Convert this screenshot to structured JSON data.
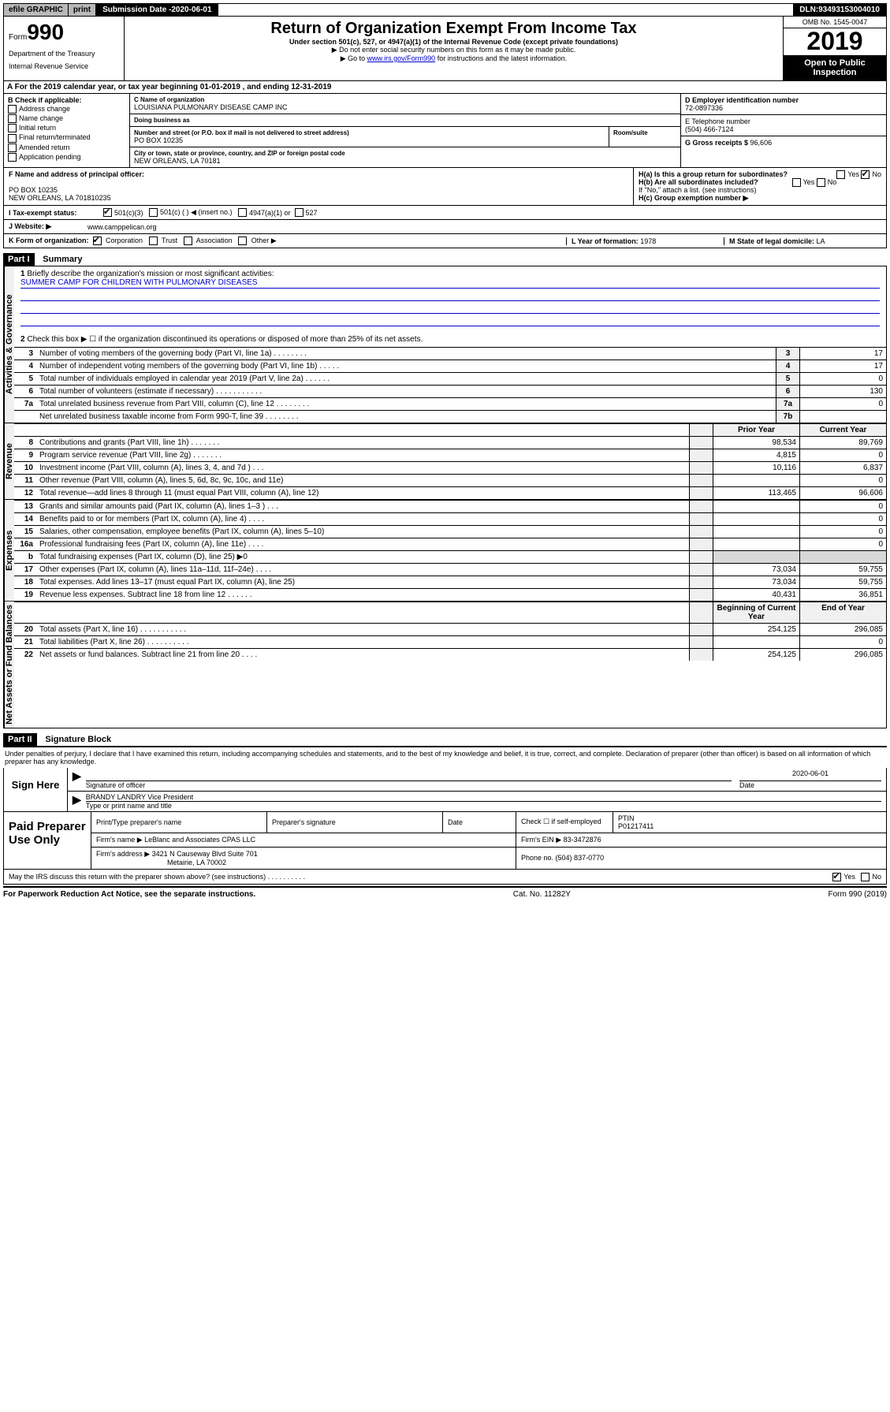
{
  "topbar": {
    "efile": "efile GRAPHIC",
    "print": "print",
    "submission_label": "Submission Date - ",
    "submission_date": "2020-06-01",
    "dln_label": "DLN: ",
    "dln": "93493153004010"
  },
  "header": {
    "form_prefix": "Form",
    "form_number": "990",
    "dept1": "Department of the Treasury",
    "dept2": "Internal Revenue Service",
    "title": "Return of Organization Exempt From Income Tax",
    "subtitle": "Under section 501(c), 527, or 4947(a)(1) of the Internal Revenue Code (except private foundations)",
    "note1": "▶ Do not enter social security numbers on this form as it may be made public.",
    "note2_pre": "▶ Go to ",
    "note2_link": "www.irs.gov/Form990",
    "note2_post": " for instructions and the latest information.",
    "omb": "OMB No. 1545-0047",
    "year": "2019",
    "open_public": "Open to Public Inspection"
  },
  "sectionA": {
    "text_pre": "A For the 2019 calendar year, or tax year beginning ",
    "begin": "01-01-2019",
    "text_mid": " , and ending ",
    "end": "12-31-2019"
  },
  "checkboxes": {
    "header": "B Check if applicable:",
    "items": [
      {
        "label": "Address change",
        "checked": false
      },
      {
        "label": "Name change",
        "checked": false
      },
      {
        "label": "Initial return",
        "checked": false
      },
      {
        "label": "Final return/terminated",
        "checked": false
      },
      {
        "label": "Amended return",
        "checked": false
      },
      {
        "label": "Application pending",
        "checked": false
      }
    ]
  },
  "entity": {
    "name_label": "C Name of organization",
    "name": "LOUISIANA PULMONARY DISEASE CAMP INC",
    "dba_label": "Doing business as",
    "dba": "",
    "addr_label": "Number and street (or P.O. box if mail is not delivered to street address)",
    "addr": "PO BOX 10235",
    "room_label": "Room/suite",
    "city_label": "City or town, state or province, country, and ZIP or foreign postal code",
    "city": "NEW ORLEANS, LA  70181"
  },
  "right": {
    "ein_label": "D Employer identification number",
    "ein": "72-0897336",
    "phone_label": "E Telephone number",
    "phone": "(504) 466-7124",
    "gross_label": "G Gross receipts $ ",
    "gross": "96,606"
  },
  "principal": {
    "label": "F Name and address of principal officer:",
    "line1": "PO BOX 10235",
    "line2": "NEW ORLEANS, LA  701810235",
    "ha": "H(a) Is this a group return for subordinates?",
    "hb": "H(b) Are all subordinates included?",
    "hnote": "If \"No,\" attach a list. (see instructions)",
    "hc": "H(c) Group exemption number ▶",
    "yes": "Yes",
    "no": "No"
  },
  "taxstatus": {
    "label": "I Tax-exempt status:",
    "opt1": "501(c)(3)",
    "opt2": "501(c) (   ) ◀ (insert no.)",
    "opt3": "4947(a)(1) or",
    "opt4": "527"
  },
  "website": {
    "label": "J Website: ▶",
    "value": "www.camppelican.org"
  },
  "korg": {
    "label": "K Form of organization:",
    "corp": "Corporation",
    "trust": "Trust",
    "assoc": "Association",
    "other": "Other ▶",
    "l_label": "L Year of formation: ",
    "l_val": "1978",
    "m_label": "M State of legal domicile: ",
    "m_val": "LA"
  },
  "part1": {
    "header": "Part I",
    "title": "Summary",
    "q1": "Briefly describe the organization's mission or most significant activities:",
    "mission": "SUMMER CAMP FOR CHILDREN WITH PULMONARY DISEASES",
    "q2": "Check this box ▶ ☐ if the organization discontinued its operations or disposed of more than 25% of its net assets.",
    "gov_lines": [
      {
        "n": "3",
        "d": "Number of voting members of the governing body (Part VI, line 1a)  .    .    .    .    .    .    .    .",
        "b": "3",
        "v": "17"
      },
      {
        "n": "4",
        "d": "Number of independent voting members of the governing body (Part VI, line 1b)  .    .    .    .    .",
        "b": "4",
        "v": "17"
      },
      {
        "n": "5",
        "d": "Total number of individuals employed in calendar year 2019 (Part V, line 2a)  .    .    .    .    .    .",
        "b": "5",
        "v": "0"
      },
      {
        "n": "6",
        "d": "Total number of volunteers (estimate if necessary)  .    .    .    .    .    .    .    .    .    .    .",
        "b": "6",
        "v": "130"
      },
      {
        "n": "7a",
        "d": "Total unrelated business revenue from Part VIII, column (C), line 12  .    .    .    .    .    .    .    .",
        "b": "7a",
        "v": "0"
      },
      {
        "n": "",
        "d": "Net unrelated business taxable income from Form 990-T, line 39  .    .    .    .    .    .    .    .",
        "b": "7b",
        "v": ""
      }
    ],
    "prior": "Prior Year",
    "current": "Current Year",
    "rev_lines": [
      {
        "n": "8",
        "d": "Contributions and grants (Part VIII, line 1h)  .    .    .    .    .    .    .",
        "p": "98,534",
        "c": "89,769"
      },
      {
        "n": "9",
        "d": "Program service revenue (Part VIII, line 2g)  .    .    .    .    .    .    .",
        "p": "4,815",
        "c": "0"
      },
      {
        "n": "10",
        "d": "Investment income (Part VIII, column (A), lines 3, 4, and 7d )  .    .    .",
        "p": "10,116",
        "c": "6,837"
      },
      {
        "n": "11",
        "d": "Other revenue (Part VIII, column (A), lines 5, 6d, 8c, 9c, 10c, and 11e)",
        "p": "",
        "c": "0"
      },
      {
        "n": "12",
        "d": "Total revenue—add lines 8 through 11 (must equal Part VIII, column (A), line 12)",
        "p": "113,465",
        "c": "96,606"
      }
    ],
    "exp_lines": [
      {
        "n": "13",
        "d": "Grants and similar amounts paid (Part IX, column (A), lines 1–3 )  .    .    .",
        "p": "",
        "c": "0"
      },
      {
        "n": "14",
        "d": "Benefits paid to or for members (Part IX, column (A), line 4)  .    .    .    .",
        "p": "",
        "c": "0"
      },
      {
        "n": "15",
        "d": "Salaries, other compensation, employee benefits (Part IX, column (A), lines 5–10)",
        "p": "",
        "c": "0"
      },
      {
        "n": "16a",
        "d": "Professional fundraising fees (Part IX, column (A), line 11e)  .    .    .    .",
        "p": "",
        "c": "0"
      },
      {
        "n": "b",
        "d": "Total fundraising expenses (Part IX, column (D), line 25) ▶0",
        "p": "__shade__",
        "c": "__shade__"
      },
      {
        "n": "17",
        "d": "Other expenses (Part IX, column (A), lines 11a–11d, 11f–24e)  .    .    .    .",
        "p": "73,034",
        "c": "59,755"
      },
      {
        "n": "18",
        "d": "Total expenses. Add lines 13–17 (must equal Part IX, column (A), line 25)",
        "p": "73,034",
        "c": "59,755"
      },
      {
        "n": "19",
        "d": "Revenue less expenses. Subtract line 18 from line 12  .    .    .    .    .    .",
        "p": "40,431",
        "c": "36,851"
      }
    ],
    "boy": "Beginning of Current Year",
    "eoy": "End of Year",
    "net_lines": [
      {
        "n": "20",
        "d": "Total assets (Part X, line 16)  .    .    .    .    .    .    .    .    .    .    .",
        "p": "254,125",
        "c": "296,085"
      },
      {
        "n": "21",
        "d": "Total liabilities (Part X, line 26)  .    .    .    .    .    .    .    .    .    .",
        "p": "",
        "c": "0"
      },
      {
        "n": "22",
        "d": "Net assets or fund balances. Subtract line 21 from line 20  .    .    .    .",
        "p": "254,125",
        "c": "296,085"
      }
    ],
    "vert_gov": "Activities & Governance",
    "vert_rev": "Revenue",
    "vert_exp": "Expenses",
    "vert_net": "Net Assets or Fund Balances"
  },
  "part2": {
    "header": "Part II",
    "title": "Signature Block",
    "perjury": "Under penalties of perjury, I declare that I have examined this return, including accompanying schedules and statements, and to the best of my knowledge and belief, it is true, correct, and complete. Declaration of preparer (other than officer) is based on all information of which preparer has any knowledge.",
    "sign_here": "Sign Here",
    "sig_officer": "Signature of officer",
    "date_label": "Date",
    "date": "2020-06-01",
    "officer_name": "BRANDY LANDRY Vice President",
    "type_name": "Type or print name and title",
    "paid": "Paid Preparer Use Only",
    "h_print": "Print/Type preparer's name",
    "h_sig": "Preparer's signature",
    "h_date": "Date",
    "h_check_pre": "Check ☐ if self-employed",
    "h_ptin": "PTIN",
    "ptin": "P01217411",
    "firm_name_l": "Firm's name    ▶ ",
    "firm_name": "LeBlanc and Associates CPAS LLC",
    "firm_ein_l": "Firm's EIN ▶ ",
    "firm_ein": "83-3472876",
    "firm_addr_l": "Firm's address ▶ ",
    "firm_addr1": "3421 N Causeway Blvd Suite 701",
    "firm_addr2": "Metairie, LA  70002",
    "phone_l": "Phone no. ",
    "phone": "(504) 837-0770",
    "discuss": "May the IRS discuss this return with the preparer shown above? (see instructions)   .    .    .    .    .    .    .    .    .    .",
    "yes": "Yes",
    "no": "No"
  },
  "footer": {
    "pra": "For Paperwork Reduction Act Notice, see the separate instructions.",
    "cat": "Cat. No. 11282Y",
    "form": "Form 990 (2019)"
  }
}
